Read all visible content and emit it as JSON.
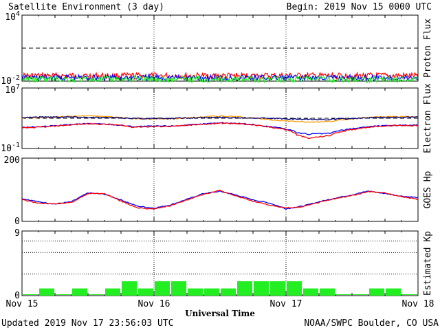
{
  "header": {
    "title": "Satellite Environment (3 day)",
    "begin": "Begin:  2019 Nov 15 0000 UTC"
  },
  "footer": {
    "updated": "Updated 2019 Nov 17 23:56:03 UTC",
    "credit": "NOAA/SWPC Boulder, CO USA"
  },
  "colors": {
    "red": "#ff0000",
    "blue": "#0000ff",
    "green": "#22ee22",
    "orange": "#ff9900",
    "navy": "#000080",
    "kp_bar": "#22ee22",
    "axis": "#000000"
  },
  "chart_data": [
    {
      "type": "line",
      "panel": "proton",
      "ylabel": "Proton Flux",
      "yscale": "log",
      "ylim": [
        0.01,
        10000
      ],
      "ytick_labels": [
        "10^4",
        "10^-2"
      ],
      "threshold": 10,
      "series": [
        {
          "color": "#ff0000",
          "level": 0.03
        },
        {
          "color": "#0000ff",
          "level": 0.02
        },
        {
          "color": "#22ee22",
          "level": 0.015
        }
      ]
    },
    {
      "type": "line",
      "panel": "electron",
      "ylabel": "Electron Flux",
      "yscale": "log",
      "ylim": [
        0.1,
        10000000
      ],
      "ytick_labels": [
        "10^7",
        "10^-1"
      ],
      "threshold": 1000,
      "series": [
        {
          "color": "#ff9900",
          "name": "",
          "x": [
            0,
            4,
            8,
            12,
            16,
            20,
            24,
            28,
            32,
            36,
            40,
            44,
            48,
            52,
            56,
            60,
            64,
            68,
            72
          ],
          "y": [
            1100,
            1300,
            1700,
            2100,
            1600,
            900,
            800,
            900,
            1400,
            2000,
            1500,
            700,
            450,
            300,
            400,
            800,
            1400,
            1700,
            1500
          ]
        },
        {
          "color": "#000080",
          "name": "",
          "x": [
            0,
            4,
            8,
            12,
            16,
            20,
            24,
            28,
            32,
            36,
            40,
            44,
            48,
            52,
            56,
            60,
            64,
            68,
            72
          ],
          "y": [
            1300,
            1500,
            1500,
            1300,
            1200,
            1000,
            900,
            1000,
            1200,
            1300,
            1200,
            1100,
            800,
            700,
            700,
            900,
            1200,
            1400,
            1400
          ]
        },
        {
          "color": "#0000ff",
          "name": "",
          "x": [
            0,
            4,
            8,
            12,
            16,
            20,
            24,
            28,
            32,
            36,
            40,
            44,
            48,
            50,
            52,
            56,
            60,
            64,
            68,
            72
          ],
          "y": [
            60,
            80,
            130,
            200,
            160,
            80,
            90,
            100,
            150,
            250,
            200,
            90,
            40,
            12,
            8,
            10,
            40,
            90,
            120,
            120
          ]
        },
        {
          "color": "#ff0000",
          "name": "",
          "x": [
            0,
            4,
            8,
            12,
            16,
            20,
            24,
            28,
            32,
            36,
            40,
            44,
            48,
            50,
            52,
            56,
            60,
            64,
            68,
            72
          ],
          "y": [
            50,
            70,
            120,
            190,
            150,
            70,
            80,
            90,
            140,
            230,
            180,
            80,
            30,
            6,
            2,
            5,
            30,
            80,
            110,
            110
          ]
        }
      ]
    },
    {
      "type": "line",
      "panel": "goes_hp",
      "ylabel": "GOES Hp",
      "ylim": [
        0,
        200
      ],
      "ytick_labels": [
        "200",
        "0"
      ],
      "series": [
        {
          "color": "#0000ff",
          "name": "",
          "x": [
            0,
            3,
            6,
            9,
            12,
            15,
            18,
            21,
            24,
            27,
            30,
            33,
            36,
            39,
            42,
            45,
            48,
            51,
            54,
            57,
            60,
            63,
            66,
            69,
            72
          ],
          "y": [
            72,
            62,
            55,
            62,
            90,
            86,
            68,
            48,
            42,
            52,
            70,
            88,
            95,
            83,
            68,
            58,
            40,
            48,
            62,
            74,
            84,
            96,
            88,
            80,
            75
          ]
        },
        {
          "color": "#ff0000",
          "name": "",
          "x": [
            0,
            3,
            6,
            9,
            12,
            15,
            18,
            21,
            24,
            27,
            30,
            33,
            36,
            39,
            42,
            45,
            48,
            51,
            54,
            57,
            60,
            63,
            66,
            69,
            72
          ],
          "y": [
            68,
            58,
            55,
            60,
            88,
            88,
            64,
            42,
            40,
            50,
            68,
            86,
            98,
            80,
            64,
            52,
            42,
            46,
            60,
            72,
            82,
            94,
            90,
            78,
            70
          ]
        }
      ]
    },
    {
      "type": "bar",
      "panel": "kp",
      "ylabel": "Estimated Kp",
      "ylim": [
        0,
        9
      ],
      "ytick_labels": [
        "9",
        "0"
      ],
      "bar_hours": 3,
      "values": [
        0,
        1,
        0,
        1,
        0,
        1,
        2,
        1,
        2,
        2,
        1,
        1,
        1,
        2,
        2,
        2,
        2,
        1,
        1,
        0,
        0,
        1,
        1,
        0
      ]
    }
  ],
  "xaxis": {
    "tick_labels": [
      "Nov 15",
      "Nov 16",
      "Nov 17",
      "Nov 18"
    ],
    "label": "Universal Time",
    "hours": 72
  }
}
